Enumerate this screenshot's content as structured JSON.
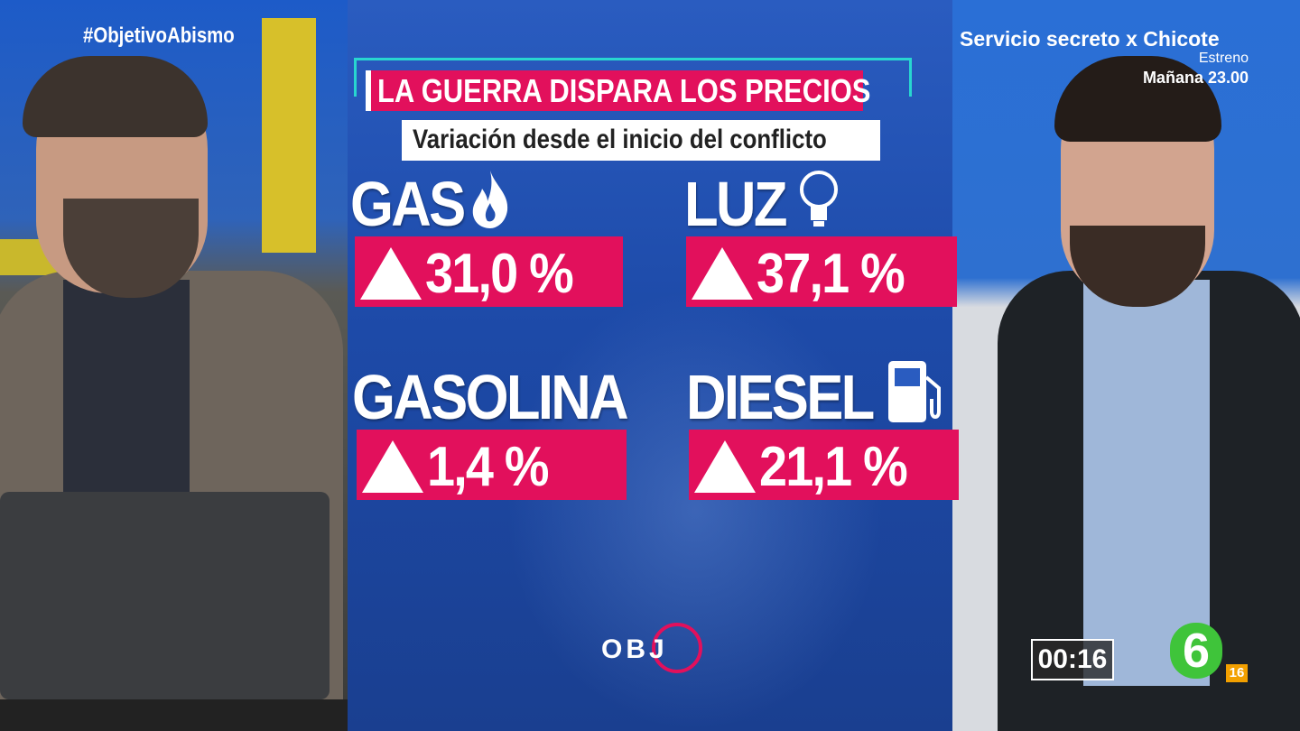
{
  "hashtag": "#ObjetivoAbismo",
  "promo": {
    "title": "Servicio secreto x Chicote",
    "line1": "Estreno",
    "line2": "Mañana 23.00"
  },
  "graphic": {
    "title": "LA GUERRA DISPARA LOS PRECIOS",
    "subtitle": "Variación desde el inicio del conflicto",
    "items": [
      {
        "label": "GAS",
        "value": "31,0 %"
      },
      {
        "label": "LUZ",
        "value": "37,1 %"
      },
      {
        "label": "GASOLINA",
        "value": "1,4 %"
      },
      {
        "label": "DIESEL",
        "value": "21,1 %"
      }
    ]
  },
  "logo": "OBJ",
  "timer": "00:16",
  "channel": {
    "name": "6",
    "rating": "16"
  }
}
